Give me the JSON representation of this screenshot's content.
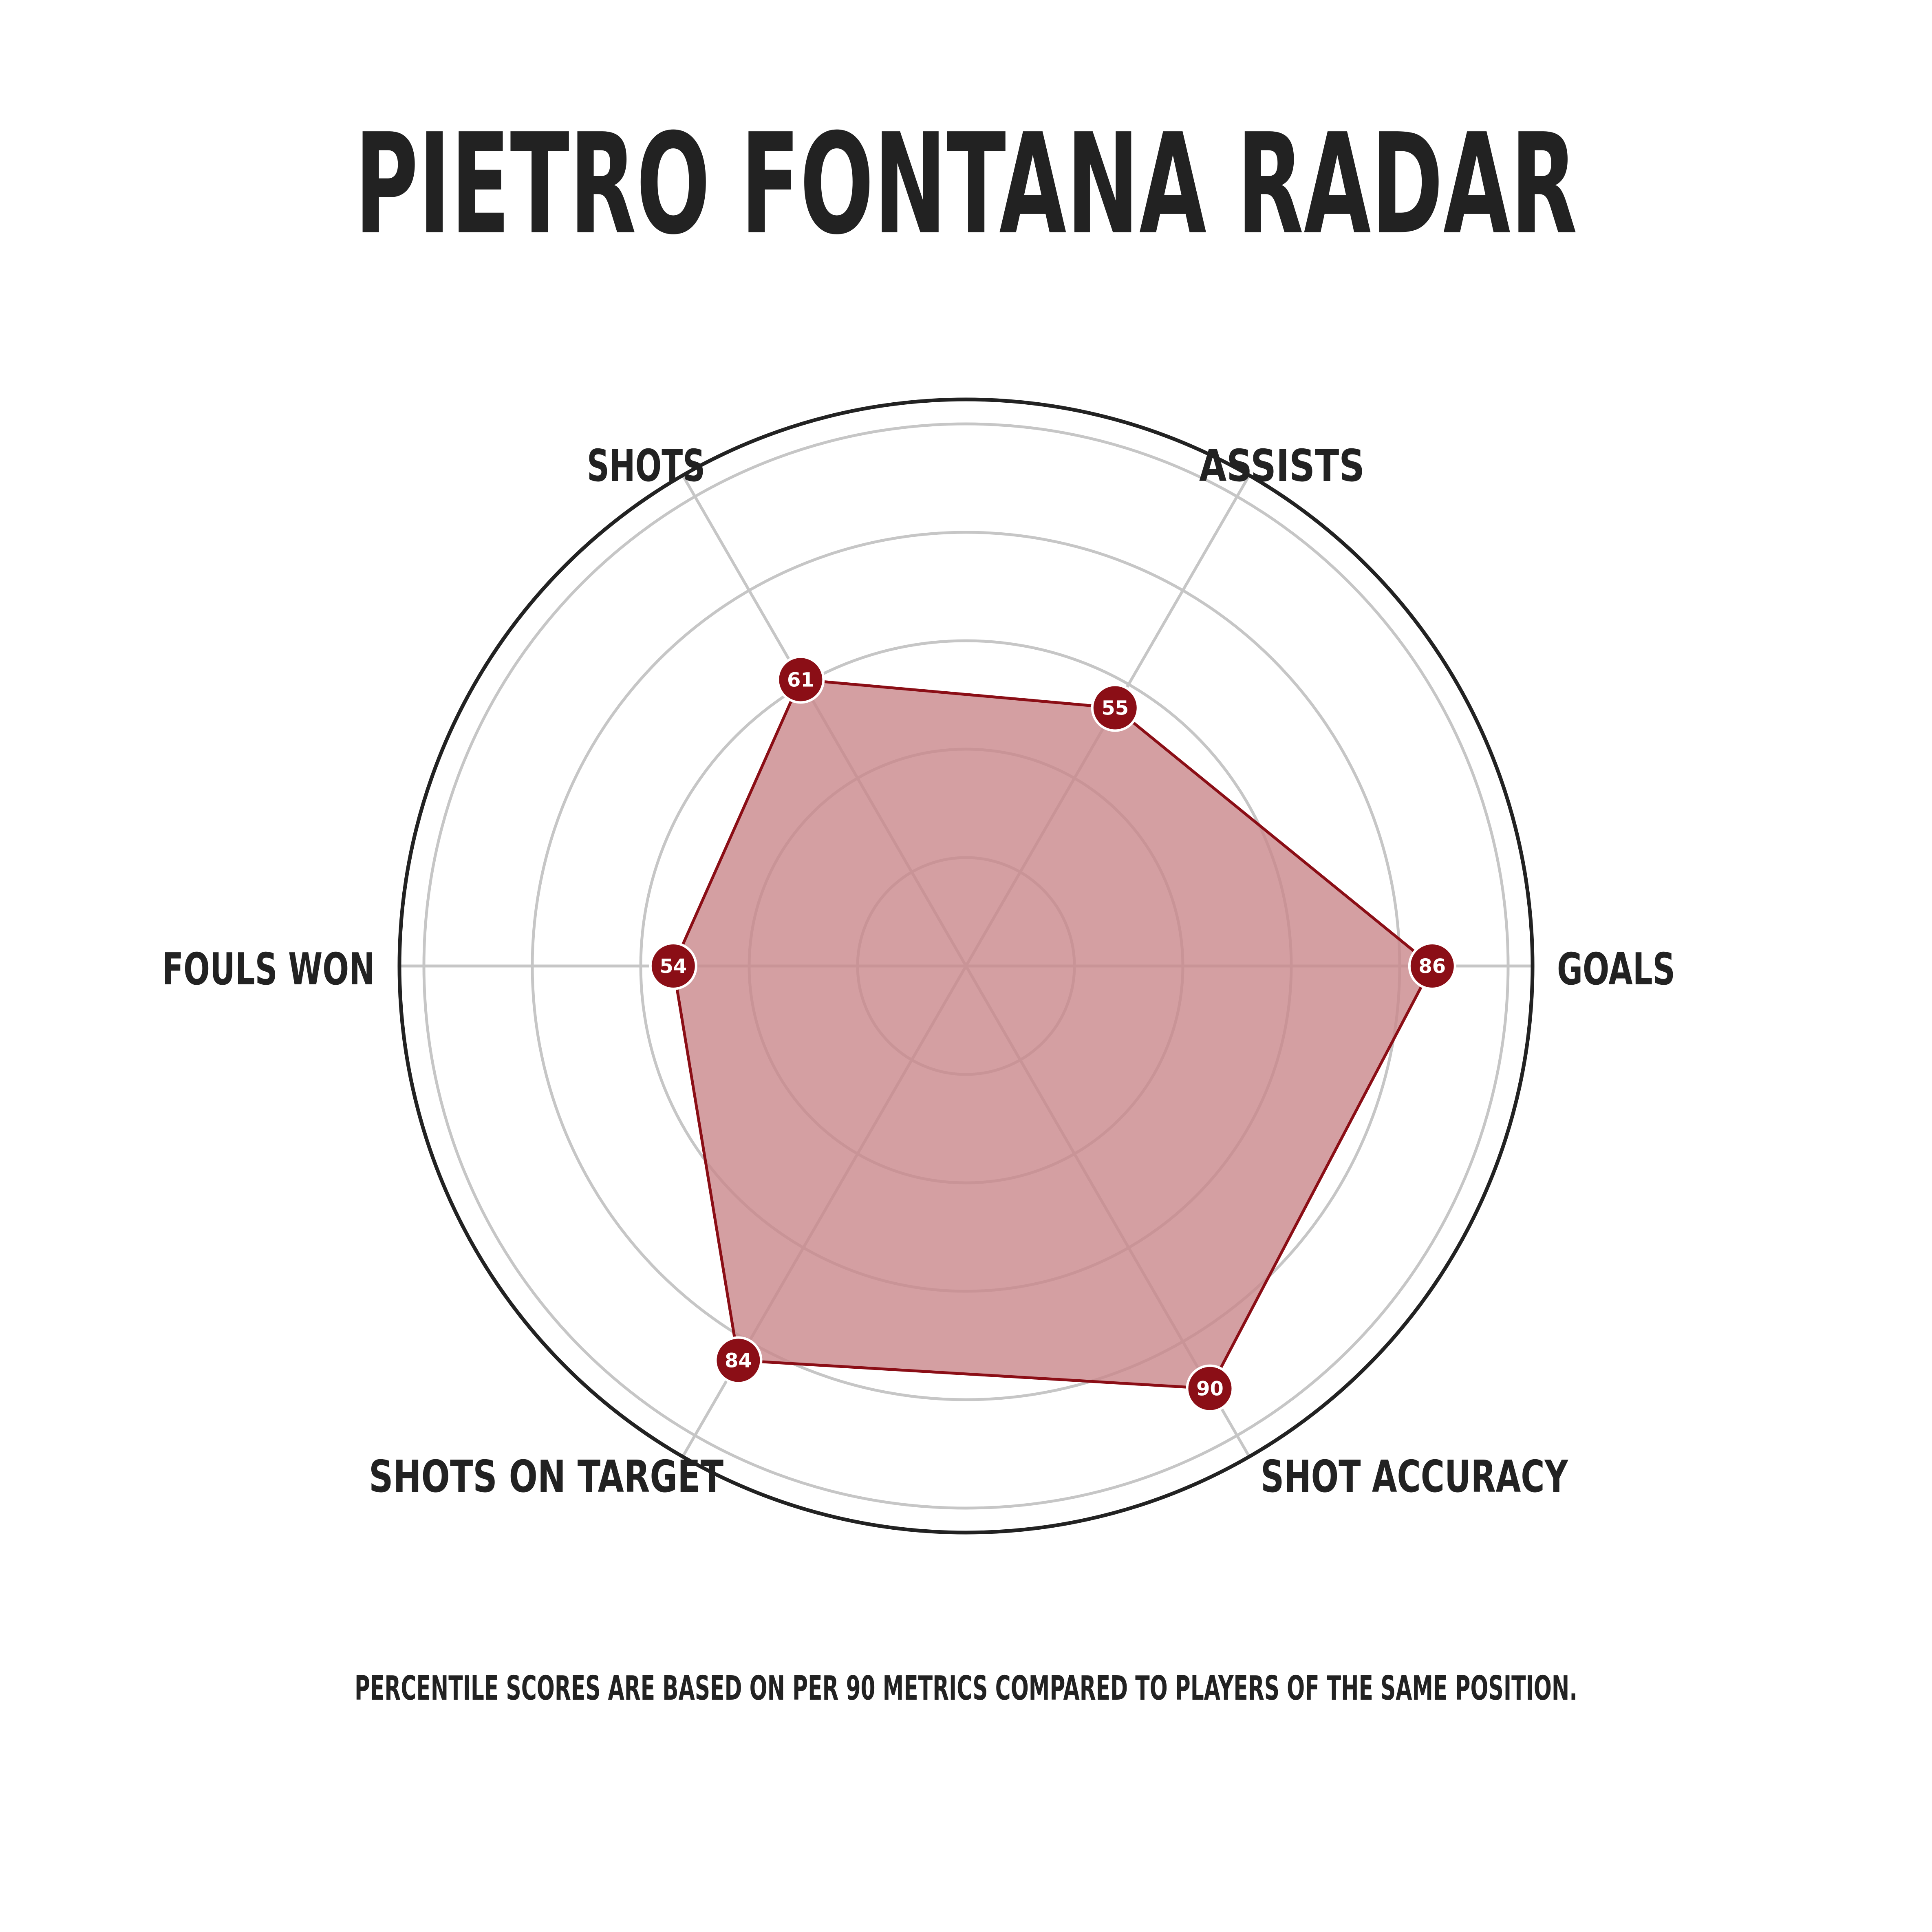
{
  "chart_data": {
    "type": "radar",
    "title": "PIETRO FONTANA RADAR",
    "footnote": "PERCENTILE SCORES ARE BASED ON PER 90 METRICS COMPARED TO PLAYERS OF THE SAME POSITION.",
    "range": [
      0,
      100
    ],
    "categories": [
      "GOALS",
      "ASSISTS",
      "SHOTS",
      "FOULS WON",
      "SHOTS ON TARGET",
      "SHOT ACCURACY"
    ],
    "values": [
      86,
      55,
      61,
      54,
      84,
      90
    ],
    "ring_values": [
      20,
      40,
      60,
      80,
      100
    ],
    "grid": true,
    "colors": {
      "fill": "#c9878b",
      "line": "#8b0e16",
      "marker": "#8b0e16",
      "grid": "#c6c6c6",
      "outer_ring": "#222222",
      "text": "#222222"
    }
  }
}
